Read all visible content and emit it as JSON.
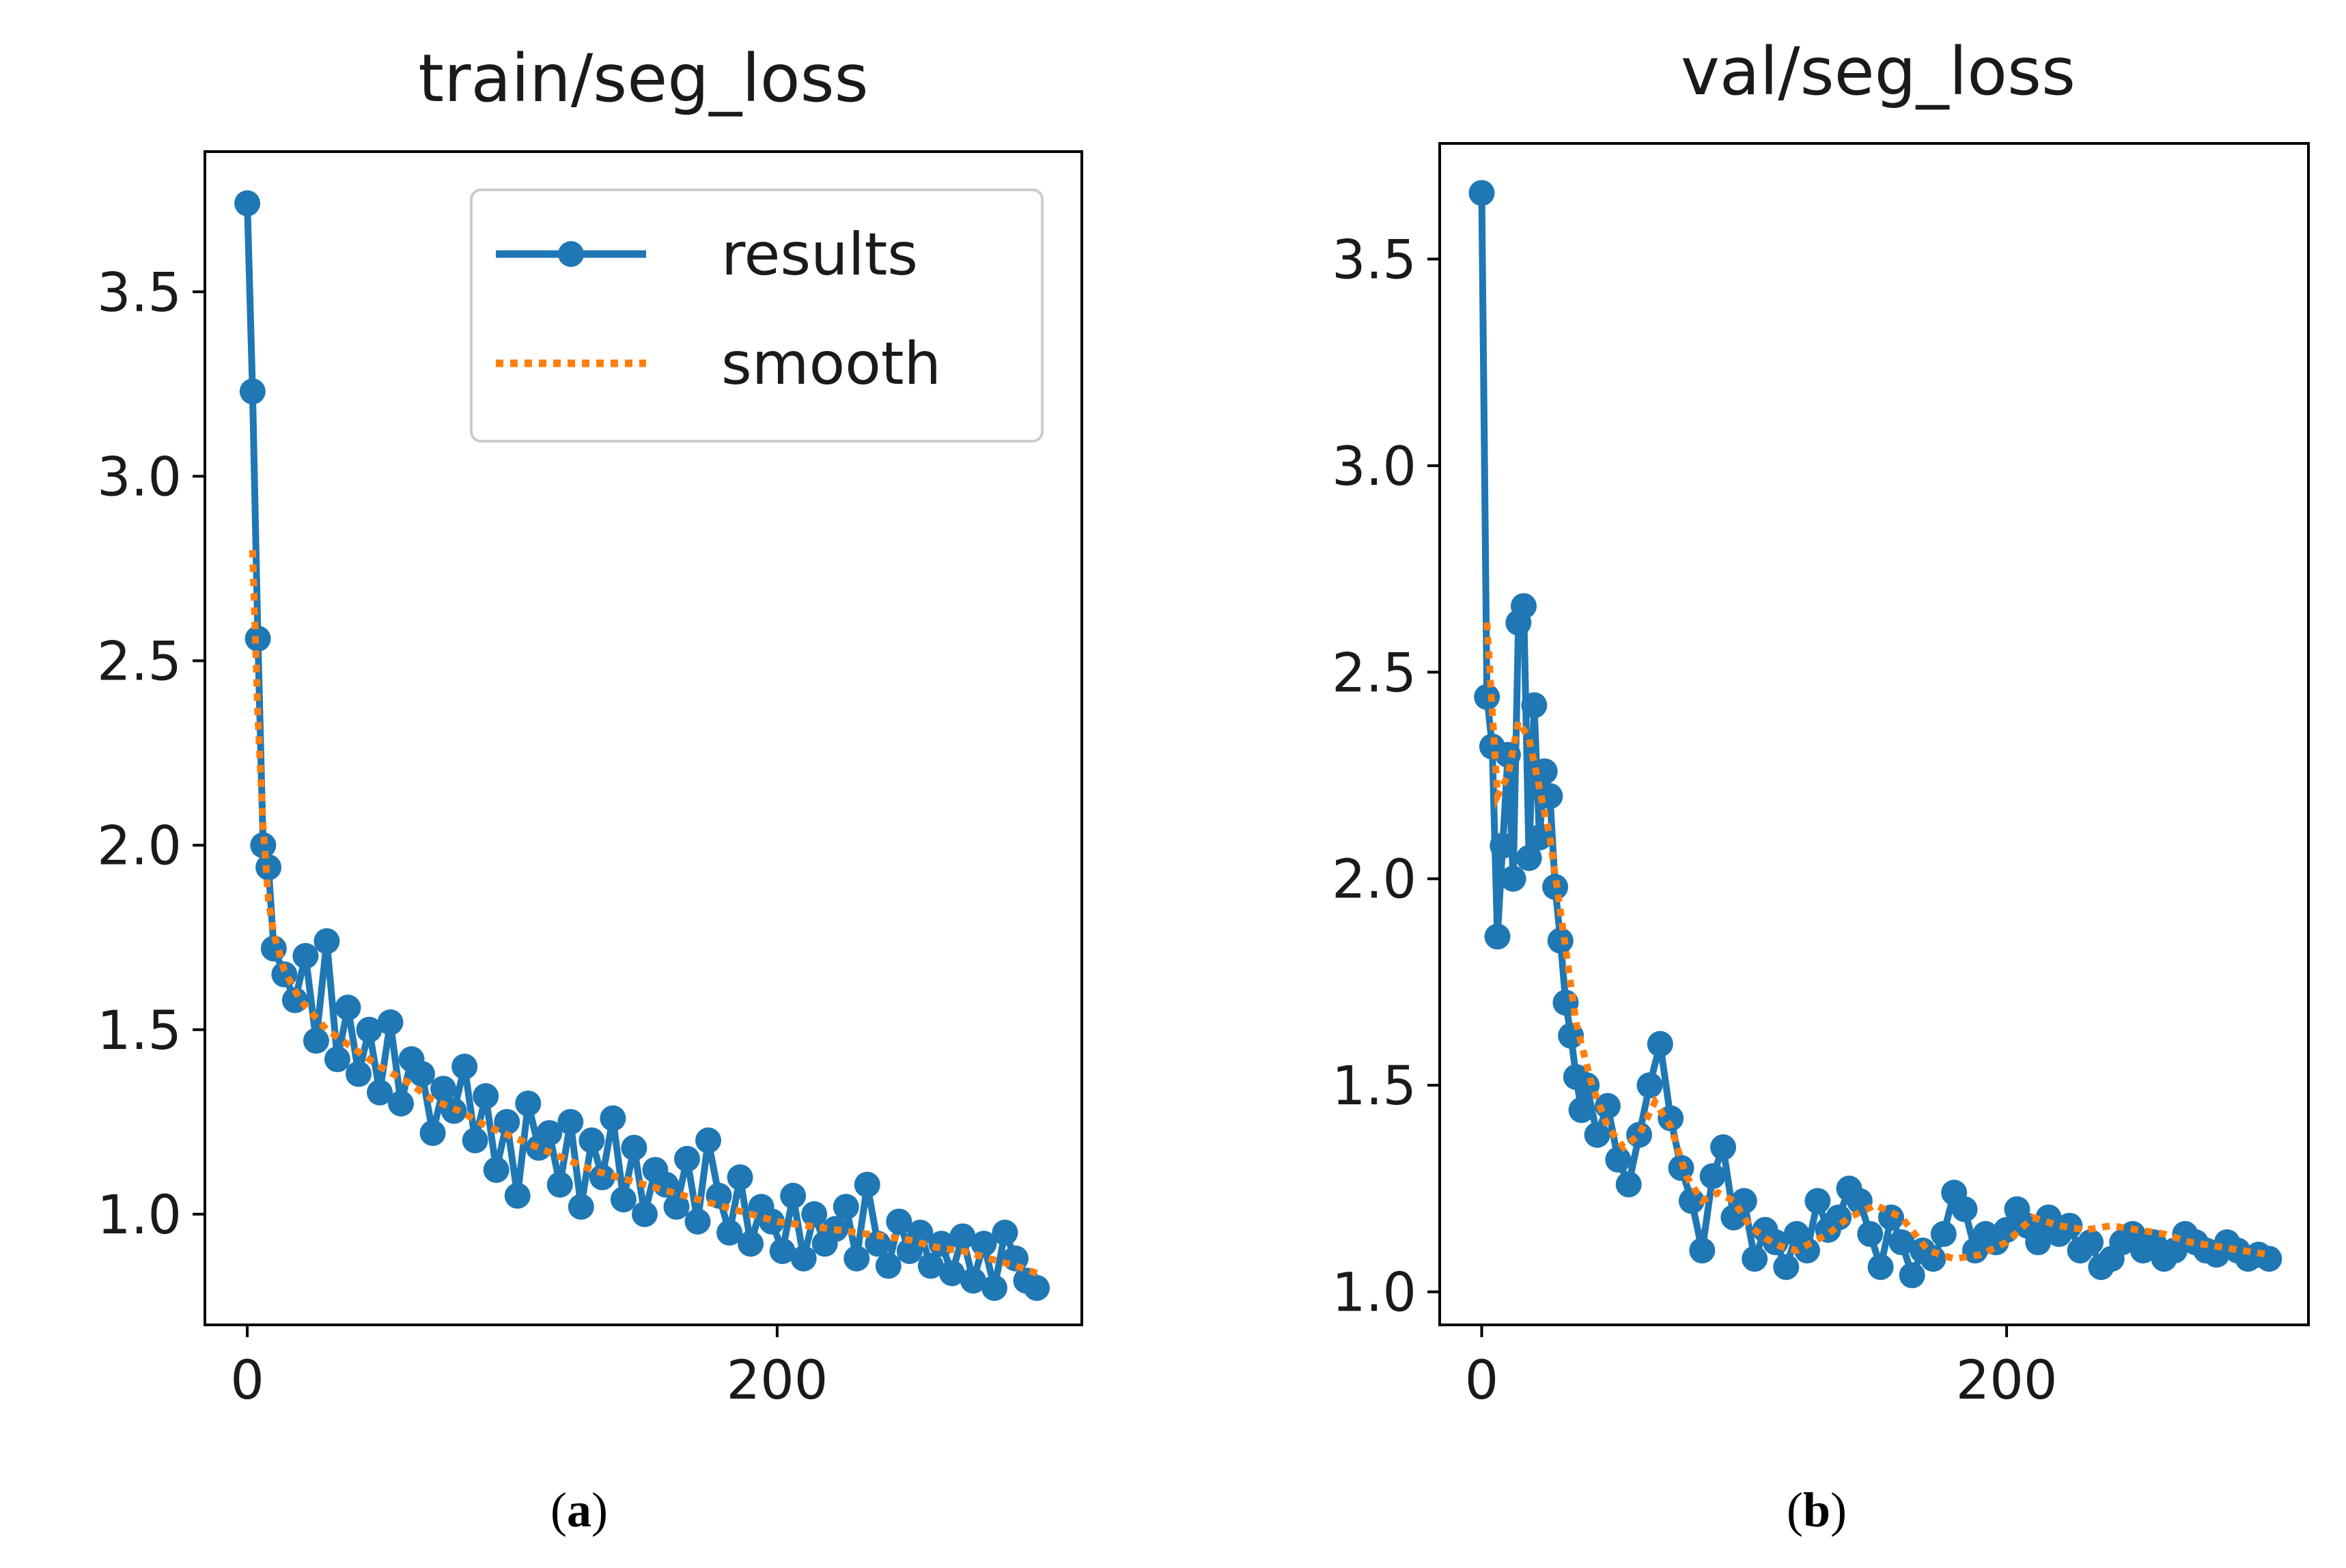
{
  "chart_data": [
    {
      "type": "line",
      "title": "train/seg_loss",
      "xlabel": "",
      "ylabel": "",
      "xlim": [
        -16,
        315
      ],
      "ylim": [
        0.7,
        3.88
      ],
      "xticks": [
        0,
        200
      ],
      "yticks": [
        1.0,
        1.5,
        2.0,
        2.5,
        3.0,
        3.5
      ],
      "legend": {
        "position": "top-right",
        "entries": [
          "results",
          "smooth"
        ]
      },
      "series": [
        {
          "name": "results",
          "style": "solid line with circle markers",
          "color": "#1f77b4",
          "x": [
            0,
            2,
            4,
            6,
            8,
            10,
            14,
            18,
            22,
            26,
            30,
            34,
            38,
            42,
            46,
            50,
            54,
            58,
            62,
            66,
            70,
            74,
            78,
            82,
            86,
            90,
            94,
            98,
            102,
            106,
            110,
            114,
            118,
            122,
            126,
            130,
            134,
            138,
            142,
            146,
            150,
            154,
            158,
            162,
            166,
            170,
            174,
            178,
            182,
            186,
            190,
            194,
            198,
            202,
            206,
            210,
            214,
            218,
            222,
            226,
            230,
            234,
            238,
            242,
            246,
            250,
            254,
            258,
            262,
            266,
            270,
            274,
            278,
            282,
            286,
            290,
            294,
            298
          ],
          "values": [
            3.74,
            3.23,
            2.56,
            2.0,
            1.94,
            1.72,
            1.65,
            1.58,
            1.7,
            1.47,
            1.74,
            1.42,
            1.56,
            1.38,
            1.5,
            1.33,
            1.52,
            1.3,
            1.42,
            1.38,
            1.22,
            1.34,
            1.28,
            1.4,
            1.2,
            1.32,
            1.12,
            1.25,
            1.05,
            1.3,
            1.18,
            1.22,
            1.08,
            1.25,
            1.02,
            1.2,
            1.1,
            1.26,
            1.04,
            1.18,
            1.0,
            1.12,
            1.08,
            1.02,
            1.15,
            0.98,
            1.2,
            1.05,
            0.95,
            1.1,
            0.92,
            1.02,
            0.98,
            0.9,
            1.05,
            0.88,
            1.0,
            0.92,
            0.96,
            1.02,
            0.88,
            1.08,
            0.92,
            0.86,
            0.98,
            0.9,
            0.95,
            0.86,
            0.92,
            0.84,
            0.94,
            0.82,
            0.92,
            0.8,
            0.95,
            0.88,
            0.82,
            0.8
          ]
        },
        {
          "name": "smooth",
          "style": "dotted line",
          "color": "#ff7f0e",
          "x": [
            2,
            4,
            6,
            8,
            10,
            14,
            20,
            30,
            40,
            50,
            60,
            70,
            80,
            90,
            100,
            110,
            120,
            130,
            140,
            150,
            160,
            170,
            180,
            190,
            200,
            210,
            220,
            230,
            240,
            250,
            260,
            270,
            280,
            290,
            298
          ],
          "values": [
            2.8,
            2.35,
            2.05,
            1.85,
            1.76,
            1.66,
            1.58,
            1.5,
            1.45,
            1.4,
            1.36,
            1.31,
            1.28,
            1.24,
            1.21,
            1.18,
            1.15,
            1.12,
            1.1,
            1.08,
            1.06,
            1.04,
            1.02,
            1.0,
            0.98,
            0.97,
            0.96,
            0.95,
            0.94,
            0.93,
            0.91,
            0.9,
            0.88,
            0.86,
            0.84
          ]
        }
      ]
    },
    {
      "type": "line",
      "title": "val/seg_loss",
      "xlabel": "",
      "ylabel": "",
      "xlim": [
        -16,
        315
      ],
      "ylim": [
        0.92,
        3.78
      ],
      "xticks": [
        0,
        200
      ],
      "yticks": [
        1.0,
        1.5,
        2.0,
        2.5,
        3.0,
        3.5
      ],
      "legend": null,
      "series": [
        {
          "name": "results",
          "style": "solid line with circle markers",
          "color": "#1f77b4",
          "x": [
            0,
            2,
            4,
            6,
            8,
            10,
            12,
            14,
            16,
            18,
            20,
            22,
            24,
            26,
            28,
            30,
            32,
            34,
            36,
            38,
            40,
            44,
            48,
            52,
            56,
            60,
            64,
            68,
            72,
            76,
            80,
            84,
            88,
            92,
            96,
            100,
            104,
            108,
            112,
            116,
            120,
            124,
            128,
            132,
            136,
            140,
            144,
            148,
            152,
            156,
            160,
            164,
            168,
            172,
            176,
            180,
            184,
            188,
            192,
            196,
            200,
            204,
            208,
            212,
            216,
            220,
            224,
            228,
            232,
            236,
            240,
            244,
            248,
            252,
            256,
            260,
            264,
            268,
            272,
            276,
            280,
            284,
            288,
            292,
            296,
            300
          ],
          "values": [
            3.66,
            2.44,
            2.32,
            1.86,
            2.08,
            2.3,
            2.0,
            2.62,
            2.66,
            2.05,
            2.42,
            2.1,
            2.26,
            2.2,
            1.98,
            1.85,
            1.7,
            1.62,
            1.52,
            1.44,
            1.5,
            1.38,
            1.45,
            1.32,
            1.26,
            1.38,
            1.5,
            1.6,
            1.42,
            1.3,
            1.22,
            1.1,
            1.28,
            1.35,
            1.18,
            1.22,
            1.08,
            1.15,
            1.12,
            1.06,
            1.14,
            1.1,
            1.22,
            1.15,
            1.18,
            1.25,
            1.22,
            1.14,
            1.06,
            1.18,
            1.12,
            1.04,
            1.1,
            1.08,
            1.14,
            1.24,
            1.2,
            1.1,
            1.14,
            1.12,
            1.15,
            1.2,
            1.16,
            1.12,
            1.18,
            1.14,
            1.16,
            1.1,
            1.12,
            1.06,
            1.08,
            1.12,
            1.14,
            1.1,
            1.12,
            1.08,
            1.1,
            1.14,
            1.12,
            1.1,
            1.09,
            1.12,
            1.1,
            1.08,
            1.09,
            1.08
          ]
        },
        {
          "name": "smooth",
          "style": "dotted line",
          "color": "#ff7f0e",
          "x": [
            2,
            6,
            10,
            14,
            18,
            22,
            26,
            30,
            36,
            42,
            48,
            54,
            60,
            66,
            72,
            78,
            84,
            90,
            96,
            102,
            108,
            114,
            120,
            126,
            132,
            140,
            150,
            160,
            170,
            180,
            190,
            200,
            210,
            220,
            230,
            240,
            250,
            260,
            270,
            280,
            290,
            300
          ],
          "values": [
            2.62,
            2.2,
            2.25,
            2.38,
            2.34,
            2.22,
            2.1,
            1.92,
            1.65,
            1.5,
            1.4,
            1.35,
            1.38,
            1.46,
            1.4,
            1.28,
            1.22,
            1.24,
            1.22,
            1.16,
            1.13,
            1.11,
            1.1,
            1.12,
            1.14,
            1.18,
            1.21,
            1.18,
            1.1,
            1.08,
            1.09,
            1.12,
            1.18,
            1.16,
            1.15,
            1.16,
            1.15,
            1.14,
            1.12,
            1.11,
            1.1,
            1.09
          ]
        }
      ]
    }
  ],
  "captions": [
    {
      "letter": "a",
      "open": "(",
      "close": ")"
    },
    {
      "letter": "b",
      "open": "(",
      "close": ")"
    }
  ]
}
